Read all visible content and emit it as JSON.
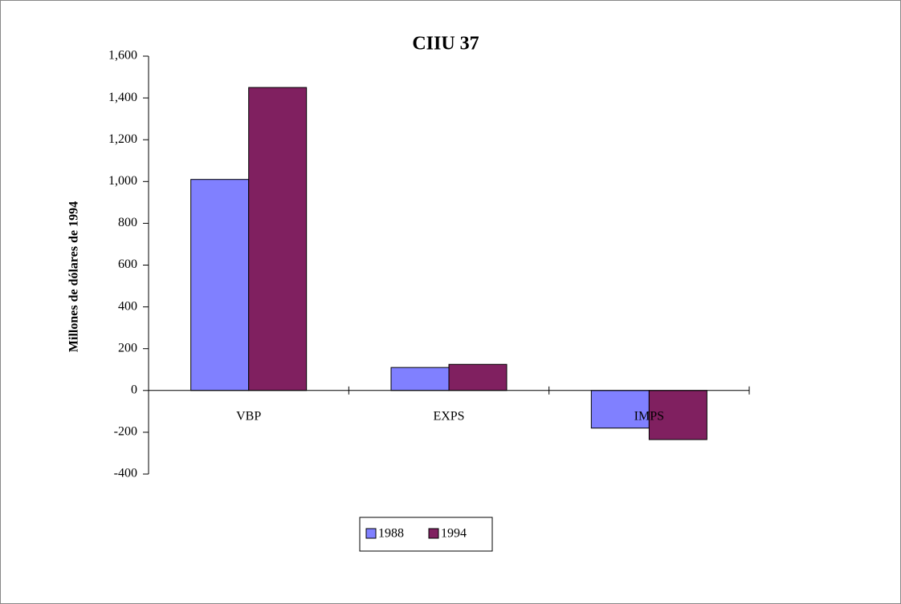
{
  "chart_data": {
    "type": "bar",
    "title": "CIIU 37",
    "y_label": "Millones de dólares de 1994",
    "categories": [
      "VBP",
      "EXPS",
      "IMPS"
    ],
    "series": [
      {
        "name": "1988",
        "color": "#8080ff",
        "values": [
          1010,
          110,
          -180
        ]
      },
      {
        "name": "1994",
        "color": "#802060",
        "values": [
          1450,
          125,
          -235
        ]
      }
    ],
    "ylim": [
      -400,
      1600
    ],
    "yticks": [
      -400,
      -200,
      0,
      200,
      400,
      600,
      800,
      {
        "value": 1000,
        "label": "1,000"
      },
      {
        "value": 1200,
        "label": "1,200"
      },
      {
        "value": 1400,
        "label": "1,400"
      },
      {
        "value": 1600,
        "label": "1,600"
      }
    ],
    "legend": "bottom"
  }
}
